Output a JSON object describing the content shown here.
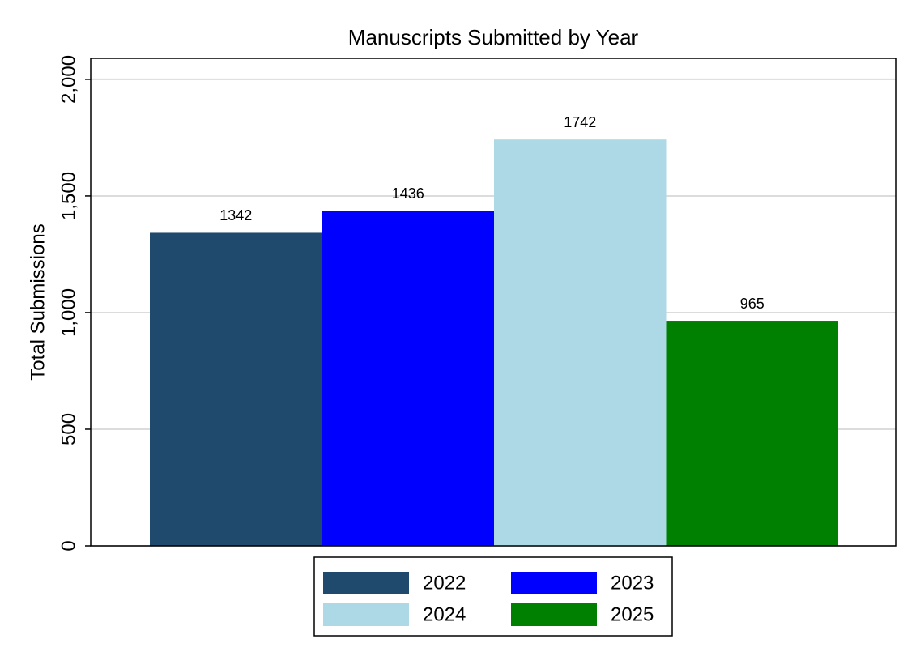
{
  "chart_data": {
    "type": "bar",
    "title": "Manuscripts Submitted by Year",
    "y_label": "Total Submissions",
    "categories": [
      null
    ],
    "series": [
      {
        "name": "2022",
        "color": "#1f4a6e",
        "values": [
          1342
        ]
      },
      {
        "name": "2023",
        "color": "#0000ff",
        "values": [
          1436
        ]
      },
      {
        "name": "2024",
        "color": "#add8e6",
        "values": [
          1742
        ]
      },
      {
        "name": "2025",
        "color": "#008000",
        "values": [
          965
        ]
      }
    ],
    "ylim": [
      0,
      2090
    ],
    "yticks": [
      0,
      500,
      {
        "value": 1000,
        "label": "1,000"
      },
      {
        "value": 1500,
        "label": "1,500"
      },
      {
        "value": 2000,
        "label": "2,000"
      }
    ],
    "grid": true,
    "legend": "bottom"
  }
}
